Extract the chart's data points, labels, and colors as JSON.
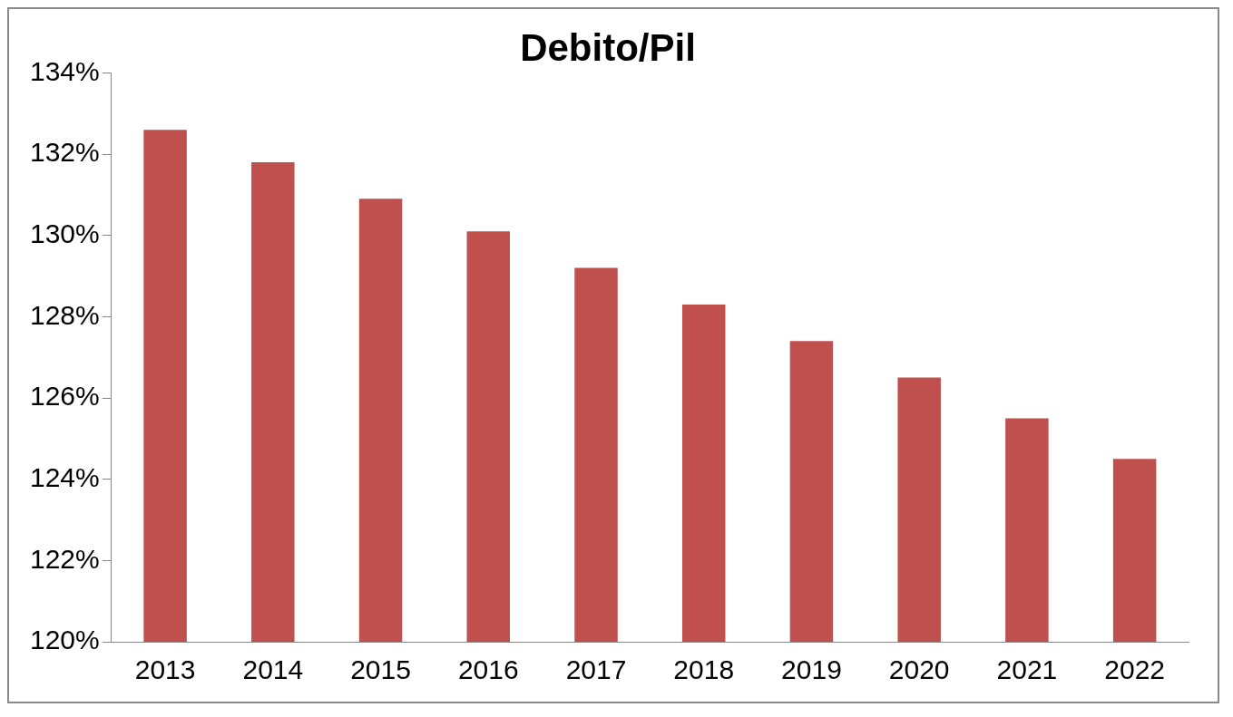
{
  "chart_data": {
    "type": "bar",
    "title": "Debito/Pil",
    "categories": [
      "2013",
      "2014",
      "2015",
      "2016",
      "2017",
      "2018",
      "2019",
      "2020",
      "2021",
      "2022"
    ],
    "values": [
      132.6,
      131.8,
      130.9,
      130.1,
      129.2,
      128.3,
      127.4,
      126.5,
      125.5,
      124.5
    ],
    "color": "#c0504d",
    "ylim": [
      120,
      134
    ],
    "yticks": [
      {
        "value": 120,
        "label": "120%"
      },
      {
        "value": 122,
        "label": "122%"
      },
      {
        "value": 124,
        "label": "124%"
      },
      {
        "value": 126,
        "label": "126%"
      },
      {
        "value": 128,
        "label": "128%"
      },
      {
        "value": 130,
        "label": "130%"
      },
      {
        "value": 132,
        "label": "132%"
      },
      {
        "value": 134,
        "label": "134%"
      }
    ],
    "grid": false,
    "legend": false
  }
}
